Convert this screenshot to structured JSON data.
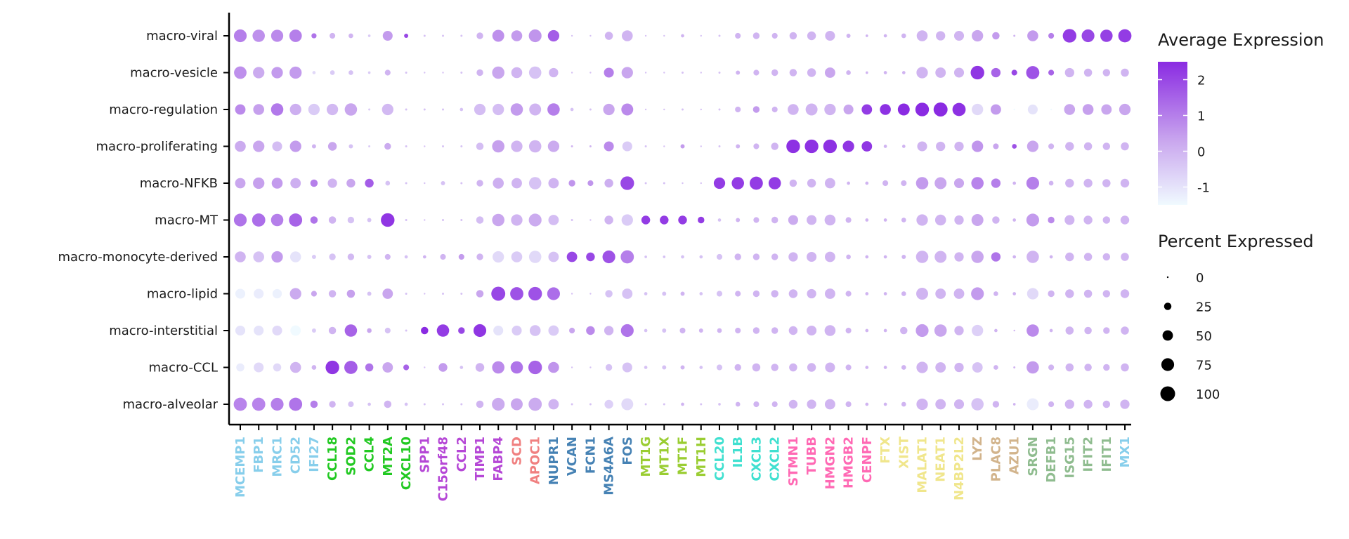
{
  "chart_data": {
    "type": "dotplot",
    "rows": [
      "macro-viral",
      "macro-vesicle",
      "macro-regulation",
      "macro-proliferating",
      "macro-NFKB",
      "macro-MT",
      "macro-monocyte-derived",
      "macro-lipid",
      "macro-interstitial",
      "macro-CCL",
      "macro-alveolar"
    ],
    "genes": [
      {
        "name": "MCEMP1",
        "color": "#87CEEB"
      },
      {
        "name": "FBP1",
        "color": "#87CEEB"
      },
      {
        "name": "MRC1",
        "color": "#87CEEB"
      },
      {
        "name": "CD52",
        "color": "#87CEEB"
      },
      {
        "name": "IFI27",
        "color": "#87CEEB"
      },
      {
        "name": "CCL18",
        "color": "#22C922"
      },
      {
        "name": "SOD2",
        "color": "#22C922"
      },
      {
        "name": "CCL4",
        "color": "#22C922"
      },
      {
        "name": "MT2A",
        "color": "#22C922"
      },
      {
        "name": "CXCL10",
        "color": "#22C922"
      },
      {
        "name": "SPP1",
        "color": "#B547D6"
      },
      {
        "name": "C15orf48",
        "color": "#B547D6"
      },
      {
        "name": "CCL2",
        "color": "#B547D6"
      },
      {
        "name": "TIMP1",
        "color": "#B547D6"
      },
      {
        "name": "FABP4",
        "color": "#B547D6"
      },
      {
        "name": "SCD",
        "color": "#F08080"
      },
      {
        "name": "APOC1",
        "color": "#F08080"
      },
      {
        "name": "NUPR1",
        "color": "#4682B4"
      },
      {
        "name": "VCAN",
        "color": "#4682B4"
      },
      {
        "name": "FCN1",
        "color": "#4682B4"
      },
      {
        "name": "MS4A6A",
        "color": "#4682B4"
      },
      {
        "name": "FOS",
        "color": "#4682B4"
      },
      {
        "name": "MT1G",
        "color": "#9ACD32"
      },
      {
        "name": "MT1X",
        "color": "#9ACD32"
      },
      {
        "name": "MT1F",
        "color": "#9ACD32"
      },
      {
        "name": "MT1H",
        "color": "#9ACD32"
      },
      {
        "name": "CCL20",
        "color": "#40E0D0"
      },
      {
        "name": "IL1B",
        "color": "#40E0D0"
      },
      {
        "name": "CXCL3",
        "color": "#40E0D0"
      },
      {
        "name": "CXCL2",
        "color": "#40E0D0"
      },
      {
        "name": "STMN1",
        "color": "#FF69B4"
      },
      {
        "name": "TUBB",
        "color": "#FF69B4"
      },
      {
        "name": "HMGN2",
        "color": "#FF69B4"
      },
      {
        "name": "HMGB2",
        "color": "#FF69B4"
      },
      {
        "name": "CENPF",
        "color": "#FF69B4"
      },
      {
        "name": "FTX",
        "color": "#F0E68C"
      },
      {
        "name": "XIST",
        "color": "#F0E68C"
      },
      {
        "name": "MALAT1",
        "color": "#F0E68C"
      },
      {
        "name": "NEAT1",
        "color": "#F0E68C"
      },
      {
        "name": "N4BP2L2",
        "color": "#F0E68C"
      },
      {
        "name": "LYZ",
        "color": "#D2B48C"
      },
      {
        "name": "PLAC8",
        "color": "#D2B48C"
      },
      {
        "name": "AZU1",
        "color": "#D2B48C"
      },
      {
        "name": "SRGN",
        "color": "#8FBC8F"
      },
      {
        "name": "DEFB1",
        "color": "#8FBC8F"
      },
      {
        "name": "ISG15",
        "color": "#8FBC8F"
      },
      {
        "name": "IFIT2",
        "color": "#8FBC8F"
      },
      {
        "name": "IFIT1",
        "color": "#8FBC8F"
      },
      {
        "name": "MX1",
        "color": "#87CEEB"
      }
    ],
    "pct": [
      [
        75,
        70,
        68,
        72,
        12,
        15,
        10,
        3,
        45,
        8,
        2,
        2,
        2,
        20,
        65,
        55,
        75,
        60,
        1,
        1,
        30,
        55,
        1,
        1,
        5,
        1,
        2,
        15,
        20,
        15,
        25,
        35,
        45,
        8,
        3,
        5,
        10,
        55,
        40,
        45,
        60,
        25,
        2,
        55,
        15,
        85,
        75,
        70,
        80
      ],
      [
        72,
        60,
        60,
        68,
        5,
        10,
        10,
        3,
        15,
        2,
        1,
        1,
        2,
        20,
        70,
        55,
        70,
        40,
        1,
        1,
        45,
        60,
        1,
        1,
        2,
        1,
        2,
        8,
        15,
        20,
        25,
        35,
        50,
        10,
        3,
        5,
        5,
        60,
        50,
        45,
        85,
        40,
        15,
        80,
        15,
        40,
        30,
        25,
        30
      ],
      [
        50,
        55,
        70,
        60,
        60,
        60,
        70,
        2,
        60,
        2,
        2,
        2,
        5,
        60,
        60,
        70,
        65,
        70,
        5,
        2,
        60,
        65,
        1,
        1,
        2,
        1,
        2,
        15,
        20,
        15,
        55,
        65,
        60,
        45,
        50,
        55,
        65,
        85,
        90,
        80,
        60,
        50,
        1,
        45,
        1,
        55,
        55,
        50,
        60
      ],
      [
        55,
        60,
        45,
        60,
        8,
        35,
        8,
        2,
        20,
        2,
        1,
        2,
        2,
        25,
        70,
        60,
        70,
        60,
        2,
        2,
        45,
        45,
        2,
        1,
        8,
        1,
        2,
        8,
        15,
        25,
        85,
        85,
        85,
        60,
        50,
        5,
        5,
        45,
        40,
        40,
        60,
        15,
        10,
        60,
        15,
        35,
        30,
        25,
        30
      ],
      [
        50,
        60,
        55,
        50,
        25,
        40,
        35,
        35,
        10,
        2,
        1,
        8,
        2,
        20,
        55,
        50,
        70,
        50,
        20,
        15,
        35,
        85,
        2,
        2,
        1,
        1,
        60,
        70,
        80,
        70,
        25,
        35,
        50,
        5,
        5,
        15,
        15,
        70,
        65,
        45,
        70,
        40,
        5,
        75,
        10,
        35,
        35,
        30,
        35
      ],
      [
        75,
        80,
        70,
        80,
        25,
        25,
        20,
        8,
        85,
        2,
        1,
        2,
        2,
        25,
        70,
        60,
        75,
        50,
        2,
        1,
        35,
        60,
        35,
        35,
        35,
        20,
        5,
        8,
        15,
        20,
        45,
        45,
        55,
        15,
        5,
        5,
        10,
        60,
        55,
        40,
        65,
        25,
        5,
        75,
        20,
        45,
        35,
        25,
        35
      ],
      [
        55,
        55,
        60,
        55,
        8,
        20,
        20,
        8,
        15,
        5,
        5,
        15,
        15,
        20,
        60,
        55,
        70,
        50,
        50,
        35,
        75,
        80,
        3,
        3,
        5,
        5,
        15,
        20,
        20,
        20,
        40,
        45,
        50,
        10,
        5,
        5,
        8,
        70,
        65,
        40,
        70,
        40,
        5,
        70,
        5,
        35,
        30,
        25,
        30
      ],
      [
        45,
        45,
        40,
        60,
        15,
        25,
        30,
        8,
        50,
        2,
        1,
        2,
        2,
        25,
        90,
        80,
        85,
        75,
        1,
        1,
        25,
        50,
        5,
        8,
        8,
        5,
        15,
        15,
        20,
        25,
        35,
        40,
        50,
        15,
        5,
        5,
        10,
        65,
        50,
        50,
        75,
        10,
        5,
        60,
        20,
        35,
        30,
        25,
        35
      ],
      [
        45,
        45,
        45,
        50,
        8,
        25,
        70,
        10,
        15,
        2,
        25,
        70,
        20,
        75,
        45,
        45,
        55,
        50,
        15,
        35,
        40,
        75,
        5,
        8,
        15,
        8,
        10,
        15,
        20,
        20,
        35,
        45,
        55,
        15,
        5,
        5,
        25,
        75,
        70,
        40,
        60,
        5,
        1,
        70,
        5,
        30,
        25,
        20,
        30
      ],
      [
        30,
        45,
        30,
        55,
        10,
        85,
        80,
        30,
        50,
        15,
        1,
        35,
        5,
        35,
        70,
        70,
        85,
        55,
        1,
        1,
        20,
        45,
        5,
        8,
        8,
        5,
        15,
        20,
        30,
        25,
        30,
        35,
        45,
        15,
        5,
        5,
        10,
        60,
        50,
        40,
        50,
        10,
        2,
        70,
        15,
        30,
        25,
        20,
        30
      ],
      [
        80,
        80,
        75,
        80,
        25,
        20,
        15,
        5,
        25,
        5,
        2,
        2,
        2,
        25,
        75,
        65,
        80,
        50,
        2,
        2,
        35,
        65,
        2,
        2,
        5,
        2,
        3,
        10,
        15,
        15,
        35,
        40,
        50,
        15,
        5,
        5,
        10,
        60,
        50,
        45,
        70,
        20,
        3,
        65,
        15,
        40,
        35,
        25,
        40
      ]
    ],
    "expr": [
      [
        1.0,
        0.7,
        0.8,
        1.0,
        1.2,
        0.0,
        0.0,
        -0.5,
        0.5,
        2.0,
        -0.3,
        -0.3,
        -0.3,
        0.0,
        0.7,
        0.5,
        0.6,
        1.6,
        -0.3,
        -0.3,
        0.0,
        0.0,
        -0.3,
        -0.3,
        0.0,
        -0.3,
        -0.3,
        0.0,
        0.0,
        0.0,
        0.0,
        0.0,
        0.0,
        0.0,
        0.0,
        0.0,
        0.0,
        0.0,
        0.0,
        0.0,
        0.3,
        0.5,
        0.0,
        0.5,
        1.0,
        2.2,
        2.0,
        2.1,
        2.2
      ],
      [
        0.7,
        0.2,
        0.5,
        0.5,
        -0.8,
        -0.5,
        -0.3,
        -0.5,
        0.0,
        -0.3,
        -0.3,
        -0.3,
        -0.3,
        0.0,
        0.3,
        0.0,
        -0.3,
        0.0,
        -0.3,
        -0.3,
        1.0,
        0.3,
        -0.3,
        -0.3,
        -0.3,
        -0.3,
        -0.3,
        0.0,
        0.0,
        0.0,
        0.0,
        0.0,
        0.3,
        0.0,
        0.0,
        0.0,
        0.0,
        0.0,
        0.0,
        0.0,
        2.3,
        1.5,
        2.0,
        1.8,
        1.5,
        0.0,
        0.0,
        0.0,
        0.0
      ],
      [
        0.8,
        0.4,
        1.1,
        0.1,
        -0.5,
        -0.1,
        0.3,
        -0.5,
        -0.1,
        -0.3,
        -0.3,
        -0.3,
        -0.3,
        -0.2,
        -0.2,
        0.5,
        0.0,
        1.0,
        -0.3,
        -0.3,
        0.3,
        0.8,
        -0.3,
        -0.3,
        -0.3,
        -0.3,
        -0.3,
        0.0,
        0.5,
        0.0,
        0.0,
        0.0,
        0.0,
        0.3,
        2.2,
        2.4,
        2.5,
        2.5,
        2.5,
        2.4,
        -0.8,
        0.5,
        -1.5,
        -1.0,
        -1.5,
        0.3,
        0.4,
        0.3,
        0.3
      ],
      [
        0.2,
        0.3,
        -0.2,
        0.5,
        0.0,
        0.3,
        -0.3,
        -0.5,
        0.2,
        -0.3,
        -0.3,
        -0.3,
        -0.3,
        -0.2,
        0.4,
        0.0,
        0.0,
        0.2,
        0.0,
        0.0,
        0.8,
        -0.5,
        -0.3,
        -0.3,
        0.5,
        -0.3,
        -0.3,
        0.0,
        0.0,
        0.0,
        2.4,
        2.4,
        2.4,
        2.3,
        2.3,
        0.0,
        0.0,
        0.0,
        0.0,
        0.0,
        0.6,
        0.3,
        1.8,
        0.3,
        0.0,
        0.0,
        0.0,
        0.0,
        0.0
      ],
      [
        0.3,
        0.4,
        0.5,
        0.1,
        1.0,
        0.0,
        0.3,
        1.6,
        -0.3,
        -0.3,
        -0.3,
        -0.3,
        -0.3,
        0.0,
        0.1,
        0.0,
        -0.3,
        0.0,
        0.6,
        0.6,
        0.1,
        2.0,
        -0.3,
        -0.3,
        -0.3,
        -0.3,
        2.2,
        2.2,
        2.2,
        2.2,
        0.0,
        0.0,
        0.0,
        0.0,
        0.0,
        0.0,
        0.0,
        0.5,
        0.3,
        0.3,
        0.9,
        1.0,
        0.0,
        1.0,
        0.0,
        0.0,
        0.0,
        0.0,
        0.0
      ],
      [
        1.2,
        1.3,
        1.0,
        1.5,
        1.2,
        0.0,
        -0.3,
        -0.3,
        2.3,
        -0.3,
        -0.3,
        -0.3,
        -0.3,
        -0.2,
        0.3,
        0.0,
        0.2,
        -0.2,
        -0.3,
        -0.3,
        0.0,
        -0.5,
        2.2,
        2.2,
        2.2,
        2.2,
        -0.3,
        0.0,
        0.0,
        0.0,
        0.2,
        0.0,
        0.0,
        0.0,
        0.0,
        0.0,
        0.0,
        0.0,
        0.0,
        0.0,
        0.3,
        0.0,
        0.0,
        0.5,
        0.8,
        0.0,
        0.0,
        0.0,
        0.0
      ],
      [
        0.0,
        -0.3,
        0.5,
        -1.0,
        -0.5,
        -0.3,
        -0.1,
        -0.3,
        0.0,
        -0.3,
        0.0,
        0.0,
        0.5,
        0.0,
        -0.8,
        -0.5,
        -0.8,
        -0.3,
        2.0,
        2.0,
        1.8,
        1.0,
        -0.3,
        -0.3,
        -0.3,
        -0.3,
        -0.3,
        0.0,
        0.0,
        0.0,
        0.0,
        0.0,
        0.0,
        0.0,
        0.0,
        0.0,
        0.0,
        0.0,
        0.0,
        0.0,
        0.3,
        1.2,
        0.0,
        0.0,
        0.0,
        0.0,
        0.0,
        0.0,
        0.0
      ],
      [
        -1.3,
        -1.2,
        -1.3,
        0.2,
        0.3,
        0.0,
        0.4,
        -0.3,
        0.3,
        -0.3,
        -0.3,
        -0.3,
        -0.3,
        0.3,
        2.0,
        1.8,
        1.8,
        1.3,
        -0.3,
        -0.3,
        -0.3,
        -0.3,
        -0.3,
        -0.3,
        0.0,
        -0.3,
        -0.3,
        0.0,
        0.0,
        0.0,
        0.0,
        0.0,
        0.0,
        0.0,
        0.0,
        0.0,
        0.0,
        0.0,
        0.0,
        0.0,
        0.5,
        0.0,
        0.0,
        -0.8,
        0.0,
        0.0,
        0.0,
        0.0,
        0.0
      ],
      [
        -1.0,
        -1.0,
        -0.8,
        -1.5,
        -0.5,
        0.0,
        1.5,
        0.3,
        -0.3,
        -0.3,
        2.5,
        2.2,
        2.0,
        2.3,
        -1.0,
        -0.5,
        -0.3,
        -0.5,
        0.3,
        0.8,
        0.0,
        1.2,
        -0.3,
        -0.3,
        0.0,
        0.0,
        0.0,
        0.0,
        0.0,
        0.0,
        0.0,
        0.0,
        0.0,
        0.0,
        0.0,
        0.0,
        0.0,
        0.5,
        0.3,
        0.0,
        -0.6,
        0.0,
        0.0,
        0.8,
        0.0,
        0.0,
        0.0,
        0.0,
        0.0
      ],
      [
        -1.2,
        -0.8,
        -0.8,
        0.0,
        0.0,
        2.3,
        1.6,
        1.2,
        0.3,
        1.5,
        -0.3,
        0.5,
        -0.3,
        0.0,
        0.8,
        1.2,
        1.5,
        0.6,
        -0.3,
        -0.3,
        -0.3,
        -0.3,
        -0.3,
        -0.3,
        0.0,
        -0.3,
        -0.3,
        0.0,
        0.0,
        0.0,
        0.0,
        0.0,
        0.0,
        0.0,
        0.0,
        0.0,
        0.0,
        0.0,
        0.0,
        0.0,
        -0.3,
        0.0,
        0.0,
        0.5,
        0.0,
        0.0,
        0.0,
        0.0,
        0.0
      ],
      [
        0.9,
        0.9,
        1.0,
        1.2,
        1.0,
        0.0,
        -0.3,
        -0.3,
        0.0,
        -0.3,
        -0.3,
        -0.3,
        -0.3,
        0.0,
        0.2,
        0.3,
        0.2,
        0.0,
        -0.3,
        -0.3,
        -0.6,
        -0.8,
        -0.3,
        -0.3,
        0.0,
        -0.3,
        -0.3,
        0.0,
        0.0,
        0.0,
        0.0,
        0.0,
        0.0,
        0.0,
        0.0,
        0.0,
        0.0,
        0.0,
        0.0,
        0.0,
        -0.3,
        0.0,
        0.0,
        -1.2,
        0.0,
        0.0,
        0.0,
        0.0,
        0.0
      ]
    ],
    "legend": {
      "color_title": "Average Expression",
      "color_ticks": [
        2,
        1,
        0,
        -1
      ],
      "color_ticks_text": [
        "2",
        "1",
        "0",
        "-1"
      ],
      "color_range": [
        -1.5,
        2.5
      ],
      "color_low": "#F0FAFF",
      "color_high": "#8A2BE2",
      "size_title": "Percent Expressed",
      "size_ticks": [
        0,
        25,
        50,
        75,
        100
      ],
      "size_ticks_text": [
        "0",
        "25",
        "50",
        "75",
        "100"
      ]
    }
  }
}
